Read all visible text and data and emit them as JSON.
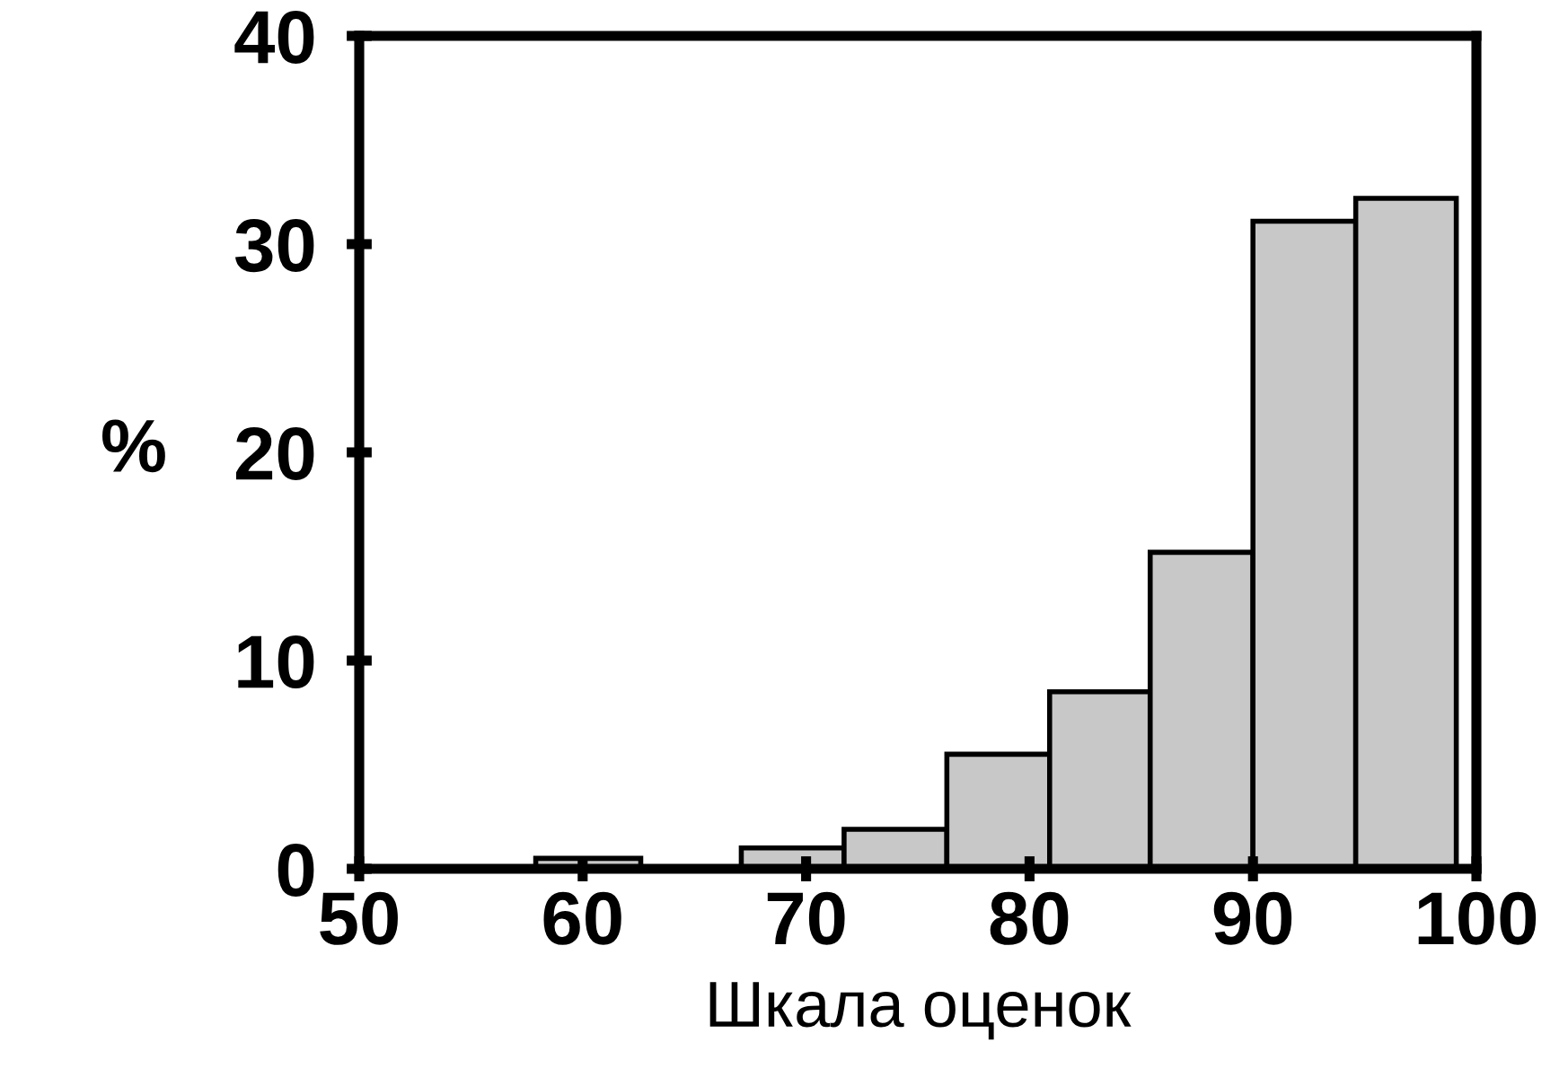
{
  "chart_data": {
    "type": "histogram",
    "xlabel": "Шкала оценок",
    "ylabel": "%",
    "bins": [
      57.9,
      62.6,
      67.1,
      71.7,
      76.3,
      80.9,
      85.4,
      90.0,
      94.6,
      99.1
    ],
    "values": [
      0.5,
      0.1,
      1.0,
      1.9,
      5.5,
      8.5,
      15.2,
      31.1,
      32.2
    ],
    "color": "#c8c8c8",
    "xlim": [
      50,
      100
    ],
    "xticks": [
      50,
      60,
      70,
      80,
      90,
      100
    ],
    "ylim": [
      0,
      40
    ],
    "yticks": [
      0,
      10,
      20,
      30,
      40
    ],
    "grid": false
  }
}
